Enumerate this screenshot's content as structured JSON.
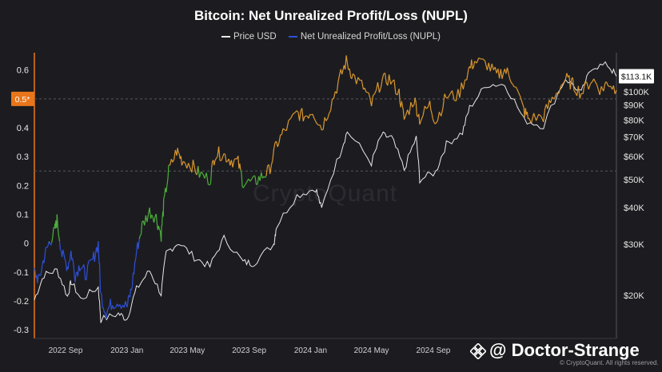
{
  "chart_data": {
    "type": "line",
    "title": "Bitcoin: Net Unrealized Profit/Loss (NUPL)",
    "series": [
      {
        "name": "Price USD",
        "color": "#e8e8e8",
        "axis": "right"
      },
      {
        "name": "Net Unrealized Profit/Loss (NUPL)",
        "color": "#2f4fd6",
        "axis": "left",
        "color_bands": {
          "below_0": "#2f4fd6",
          "0_to_0.25": "#4caf3a",
          "above_0.25": "#d8962e"
        }
      }
    ],
    "x_ticks": [
      "2022 Sep",
      "2023 Jan",
      "2023 May",
      "2023 Sep",
      "2024 Jan",
      "2024 May",
      "2024 Sep"
    ],
    "left_axis": {
      "ticks": [
        "0.6",
        "0.5",
        "0.4",
        "0.3",
        "0.2",
        "0.1",
        "0",
        "-0.1",
        "-0.2",
        "-0.3"
      ],
      "ylim": [
        -0.33,
        0.66
      ]
    },
    "right_axis": {
      "ticks": [
        "$100K",
        "$90K",
        "$80K",
        "$70K",
        "$60K",
        "$50K",
        "$40K",
        "$30K",
        "$20K"
      ],
      "scale": "log"
    },
    "reference_lines": [
      0.5,
      0.25
    ],
    "current_nupl_label": "0.5*",
    "current_price_label": "$113.1K",
    "nupl_points": [
      [
        "2022-07-01",
        -0.1
      ],
      [
        "2022-07-10",
        -0.13
      ],
      [
        "2022-07-20",
        -0.05
      ],
      [
        "2022-07-30",
        0.0
      ],
      [
        "2022-08-10",
        0.04
      ],
      [
        "2022-08-15",
        0.08
      ],
      [
        "2022-08-25",
        -0.04
      ],
      [
        "2022-09-05",
        -0.08
      ],
      [
        "2022-09-12",
        -0.03
      ],
      [
        "2022-09-20",
        -0.11
      ],
      [
        "2022-10-01",
        -0.07
      ],
      [
        "2022-10-10",
        -0.11
      ],
      [
        "2022-10-25",
        -0.06
      ],
      [
        "2022-11-05",
        0.0
      ],
      [
        "2022-11-10",
        -0.18
      ],
      [
        "2022-11-20",
        -0.24
      ],
      [
        "2022-12-01",
        -0.21
      ],
      [
        "2022-12-15",
        -0.2
      ],
      [
        "2023-01-01",
        -0.22
      ],
      [
        "2023-01-10",
        -0.16
      ],
      [
        "2023-01-20",
        -0.03
      ],
      [
        "2023-01-31",
        0.06
      ],
      [
        "2023-02-15",
        0.11
      ],
      [
        "2023-02-28",
        0.09
      ],
      [
        "2023-03-10",
        0.03
      ],
      [
        "2023-03-15",
        0.13
      ],
      [
        "2023-03-25",
        0.25
      ],
      [
        "2023-04-10",
        0.32
      ],
      [
        "2023-04-20",
        0.29
      ],
      [
        "2023-05-10",
        0.27
      ],
      [
        "2023-05-25",
        0.24
      ],
      [
        "2023-06-15",
        0.22
      ],
      [
        "2023-06-25",
        0.31
      ],
      [
        "2023-07-10",
        0.31
      ],
      [
        "2023-07-25",
        0.29
      ],
      [
        "2023-08-10",
        0.28
      ],
      [
        "2023-08-20",
        0.21
      ],
      [
        "2023-09-10",
        0.21
      ],
      [
        "2023-09-25",
        0.23
      ],
      [
        "2023-10-10",
        0.25
      ],
      [
        "2023-10-25",
        0.34
      ],
      [
        "2023-11-10",
        0.39
      ],
      [
        "2023-12-05",
        0.45
      ],
      [
        "2023-12-20",
        0.44
      ],
      [
        "2024-01-05",
        0.46
      ],
      [
        "2024-01-23",
        0.4
      ],
      [
        "2024-02-10",
        0.48
      ],
      [
        "2024-02-28",
        0.57
      ],
      [
        "2024-03-12",
        0.63
      ],
      [
        "2024-03-25",
        0.58
      ],
      [
        "2024-04-15",
        0.54
      ],
      [
        "2024-05-01",
        0.48
      ],
      [
        "2024-05-20",
        0.56
      ],
      [
        "2024-06-05",
        0.57
      ],
      [
        "2024-06-25",
        0.52
      ],
      [
        "2024-07-05",
        0.43
      ],
      [
        "2024-07-25",
        0.5
      ],
      [
        "2024-08-05",
        0.43
      ],
      [
        "2024-08-25",
        0.48
      ],
      [
        "2024-09-06",
        0.42
      ],
      [
        "2024-09-27",
        0.51
      ],
      [
        "2024-10-20",
        0.51
      ],
      [
        "2024-11-10",
        0.6
      ],
      [
        "2024-11-22",
        0.63
      ],
      [
        "2024-12-17",
        0.62
      ],
      [
        "2025-01-05",
        0.58
      ],
      [
        "2025-01-21",
        0.6
      ],
      [
        "2025-02-05",
        0.57
      ],
      [
        "2025-02-28",
        0.46
      ],
      [
        "2025-03-10",
        0.43
      ],
      [
        "2025-04-08",
        0.44
      ],
      [
        "2025-04-25",
        0.5
      ],
      [
        "2025-05-22",
        0.57
      ],
      [
        "2025-06-05",
        0.55
      ],
      [
        "2025-06-22",
        0.52
      ],
      [
        "2025-07-14",
        0.57
      ],
      [
        "2025-08-01",
        0.53
      ],
      [
        "2025-08-14",
        0.56
      ],
      [
        "2025-08-31",
        0.53
      ]
    ],
    "price_points": [
      [
        "2022-07-01",
        19300
      ],
      [
        "2022-07-20",
        23500
      ],
      [
        "2022-08-15",
        24400
      ],
      [
        "2022-09-05",
        19800
      ],
      [
        "2022-09-12",
        22300
      ],
      [
        "2022-10-01",
        19400
      ],
      [
        "2022-11-05",
        21300
      ],
      [
        "2022-11-10",
        16500
      ],
      [
        "2022-12-15",
        17300
      ],
      [
        "2023-01-01",
        16600
      ],
      [
        "2023-01-20",
        21000
      ],
      [
        "2023-02-15",
        24300
      ],
      [
        "2023-03-10",
        20200
      ],
      [
        "2023-03-20",
        28000
      ],
      [
        "2023-04-14",
        30400
      ],
      [
        "2023-05-15",
        27000
      ],
      [
        "2023-06-15",
        25100
      ],
      [
        "2023-07-13",
        31400
      ],
      [
        "2023-08-20",
        26000
      ],
      [
        "2023-09-10",
        25800
      ],
      [
        "2023-10-20",
        30000
      ],
      [
        "2023-10-25",
        34500
      ],
      [
        "2023-12-05",
        44000
      ],
      [
        "2024-01-11",
        46600
      ],
      [
        "2024-01-23",
        39500
      ],
      [
        "2024-02-28",
        61000
      ],
      [
        "2024-03-14",
        73000
      ],
      [
        "2024-05-01",
        57000
      ],
      [
        "2024-05-21",
        71000
      ],
      [
        "2024-06-10",
        69500
      ],
      [
        "2024-07-05",
        54000
      ],
      [
        "2024-07-29",
        69500
      ],
      [
        "2024-08-05",
        50000
      ],
      [
        "2024-09-06",
        53000
      ],
      [
        "2024-09-27",
        66000
      ],
      [
        "2024-10-29",
        72500
      ],
      [
        "2024-11-12",
        88000
      ],
      [
        "2024-12-17",
        106000
      ],
      [
        "2025-01-21",
        106000
      ],
      [
        "2025-02-28",
        80000
      ],
      [
        "2025-04-08",
        76300
      ],
      [
        "2025-05-22",
        111000
      ],
      [
        "2025-06-22",
        99000
      ],
      [
        "2025-07-14",
        122000
      ],
      [
        "2025-08-14",
        123500
      ],
      [
        "2025-08-31",
        113100
      ]
    ]
  },
  "watermark": "CryptoQuant",
  "brand": {
    "handle": "@ Doctor-Strange",
    "icon": "binance-diamond-icon"
  },
  "copyright": "© CryptoQuant. All rights reserved.",
  "colors": {
    "background": "#1c1c20",
    "grid": "#2c2c33",
    "axis_orange": "#e9761a",
    "price_tag": "#ffffff"
  }
}
